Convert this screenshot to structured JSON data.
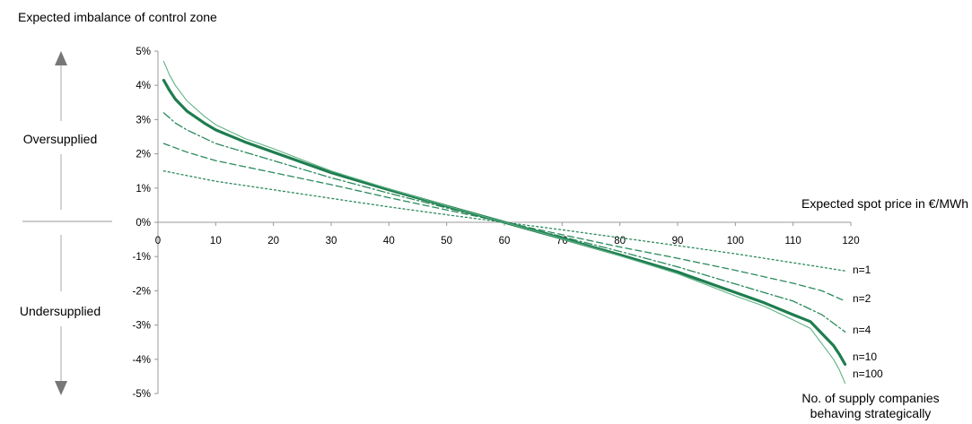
{
  "chart_data": {
    "type": "line",
    "title": "Expected imbalance of control zone",
    "xlabel": "Expected spot price in €/MWh",
    "ylabel": "",
    "xlim": [
      0,
      120
    ],
    "ylim": [
      -5,
      5
    ],
    "x_ticks": [
      "0",
      "10",
      "20",
      "30",
      "40",
      "50",
      "60",
      "70",
      "80",
      "90",
      "100",
      "110",
      "120"
    ],
    "y_ticks": [
      "5%",
      "4%",
      "3%",
      "2%",
      "1%",
      "0%",
      "-1%",
      "-2%",
      "-3%",
      "-4%",
      "-5%"
    ],
    "grid": false,
    "side_labels": {
      "upper": "Oversupplied",
      "lower": "Undersupplied"
    },
    "legend_title": "No. of supply companies behaving strategically",
    "series": [
      {
        "name": "n=1",
        "color": "#2a8a5c",
        "style": "dotted",
        "x": [
          1,
          10,
          20,
          30,
          40,
          50,
          60,
          70,
          80,
          90,
          100,
          110,
          119
        ],
        "y": [
          1.5,
          1.2,
          0.95,
          0.7,
          0.45,
          0.22,
          0.0,
          -0.22,
          -0.45,
          -0.68,
          -0.92,
          -1.18,
          -1.42
        ]
      },
      {
        "name": "n=2",
        "color": "#2a8a5c",
        "style": "dashed",
        "x": [
          1,
          5,
          10,
          20,
          30,
          40,
          50,
          60,
          70,
          80,
          90,
          100,
          110,
          115,
          119
        ],
        "y": [
          2.3,
          2.05,
          1.8,
          1.45,
          1.1,
          0.72,
          0.36,
          0.0,
          -0.36,
          -0.72,
          -1.05,
          -1.4,
          -1.78,
          -2.0,
          -2.3
        ]
      },
      {
        "name": "n=4",
        "color": "#2a8a5c",
        "style": "dashdot",
        "x": [
          1,
          3,
          5,
          10,
          20,
          30,
          40,
          50,
          60,
          70,
          80,
          90,
          100,
          110,
          115,
          119
        ],
        "y": [
          3.2,
          2.9,
          2.7,
          2.3,
          1.8,
          1.3,
          0.85,
          0.42,
          0.0,
          -0.42,
          -0.85,
          -1.3,
          -1.8,
          -2.3,
          -2.7,
          -3.2
        ]
      },
      {
        "name": "n=10",
        "color": "#1e7d4f",
        "style": "solid-thick",
        "x": [
          1,
          2,
          3,
          5,
          8,
          10,
          15,
          20,
          30,
          40,
          50,
          60,
          70,
          80,
          90,
          100,
          105,
          110,
          113,
          115,
          117,
          118,
          119
        ],
        "y": [
          4.15,
          3.85,
          3.6,
          3.25,
          2.9,
          2.7,
          2.35,
          2.05,
          1.45,
          0.95,
          0.47,
          0.0,
          -0.47,
          -0.95,
          -1.45,
          -2.05,
          -2.35,
          -2.7,
          -2.9,
          -3.25,
          -3.6,
          -3.85,
          -4.15
        ]
      },
      {
        "name": "n=100",
        "color": "#5fb285",
        "style": "solid-thin",
        "x": [
          1,
          2,
          3,
          5,
          8,
          10,
          15,
          20,
          30,
          40,
          50,
          60,
          70,
          80,
          90,
          100,
          105,
          110,
          113,
          115,
          117,
          118,
          119
        ],
        "y": [
          4.7,
          4.3,
          4.0,
          3.55,
          3.1,
          2.85,
          2.45,
          2.15,
          1.5,
          0.98,
          0.48,
          0.0,
          -0.48,
          -0.98,
          -1.5,
          -2.15,
          -2.45,
          -2.85,
          -3.1,
          -3.55,
          -4.0,
          -4.3,
          -4.7
        ]
      }
    ]
  }
}
